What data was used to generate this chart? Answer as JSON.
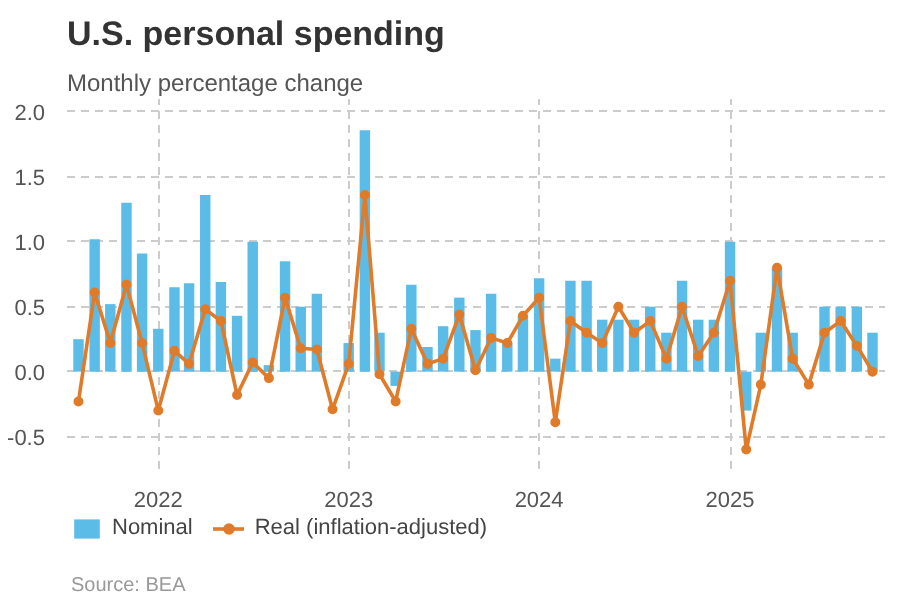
{
  "chart_data": {
    "type": "bar",
    "title": "U.S. personal spending",
    "subtitle": "Monthly percentage change",
    "annotations": [
      "Source: BEA"
    ],
    "x": [
      "2021-08",
      "2021-09",
      "2021-10",
      "2021-11",
      "2021-12",
      "2022-01",
      "2022-02",
      "2022-03",
      "2022-04",
      "2022-05",
      "2022-06",
      "2022-07",
      "2022-08",
      "2022-09",
      "2022-10",
      "2022-11",
      "2022-12",
      "2023-01",
      "2023-02",
      "2023-03",
      "2023-04",
      "2023-05",
      "2023-06",
      "2023-07",
      "2023-08",
      "2023-09",
      "2023-10",
      "2023-11",
      "2023-12",
      "2024-01",
      "2024-02",
      "2024-03",
      "2024-04",
      "2024-05",
      "2024-06",
      "2024-07",
      "2024-08",
      "2024-09",
      "2024-10",
      "2024-11",
      "2024-12",
      "2025-01",
      "2025-02",
      "2025-03",
      "2025-04",
      "2025-05",
      "2025-06",
      "2025-07",
      "2025-08",
      "2025-09",
      "2025-10"
    ],
    "series": [
      {
        "name": "Nominal",
        "color": "#5bbce8",
        "values": [
          0.25,
          1.02,
          0.52,
          1.3,
          0.91,
          0.33,
          0.65,
          0.68,
          1.36,
          0.69,
          0.43,
          1.0,
          0.05,
          0.85,
          0.5,
          0.6,
          0.0,
          0.22,
          1.86,
          0.3,
          -0.11,
          0.67,
          0.19,
          0.35,
          0.57,
          0.32,
          0.6,
          0.22,
          0.43,
          0.72,
          0.1,
          0.7,
          0.7,
          0.4,
          0.4,
          0.4,
          0.5,
          0.3,
          0.7,
          0.4,
          0.4,
          1.0,
          -0.3,
          0.3,
          0.8,
          0.3,
          0.0,
          0.5,
          0.5,
          0.5,
          0.3
        ]
      },
      {
        "name": "Real (inflation-adjusted)",
        "type": "line",
        "color": "#e07b2a",
        "marker": "circle",
        "values": [
          -0.23,
          0.61,
          0.22,
          0.67,
          0.22,
          -0.3,
          0.16,
          0.06,
          0.48,
          0.39,
          -0.18,
          0.07,
          -0.05,
          0.57,
          0.18,
          0.17,
          -0.29,
          0.06,
          1.36,
          -0.02,
          -0.23,
          0.33,
          0.06,
          0.1,
          0.44,
          0.01,
          0.26,
          0.22,
          0.43,
          0.57,
          -0.39,
          0.39,
          0.3,
          0.22,
          0.5,
          0.3,
          0.39,
          0.1,
          0.5,
          0.12,
          0.3,
          0.7,
          -0.6,
          -0.1,
          0.8,
          0.1,
          -0.1,
          0.3,
          0.39,
          0.2,
          0.0
        ]
      }
    ],
    "xlim": [
      "2021-07-10",
      "2025-10-25"
    ],
    "xticks": [
      {
        "value": "2022-01",
        "label": "2022"
      },
      {
        "value": "2023-01",
        "label": "2023"
      },
      {
        "value": "2024-01",
        "label": "2024"
      },
      {
        "value": "2025-01",
        "label": "2025"
      }
    ],
    "ylim": [
      -0.75,
      2.1
    ],
    "yticks": [
      {
        "value": -0.5,
        "label": "-0.5"
      },
      {
        "value": 0,
        "label": "0.0"
      },
      {
        "value": 0.5,
        "label": "0.5"
      },
      {
        "value": 1,
        "label": "1.0"
      },
      {
        "value": 1.5,
        "label": "1.5"
      },
      {
        "value": 2,
        "label": "2.0"
      }
    ],
    "grid": true,
    "legend": "bottom"
  }
}
